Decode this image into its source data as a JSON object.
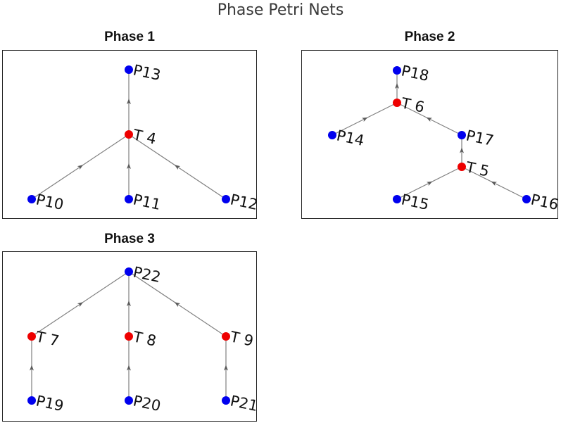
{
  "title": "Phase Petri Nets",
  "colors": {
    "place": "#0000ee",
    "transition": "#ee0000",
    "edge": "#7f7f7f",
    "arrow": "#5a5a5a"
  },
  "panels": [
    {
      "title": "Phase 1",
      "nodes": [
        {
          "id": "P13",
          "label": "P13",
          "kind": "place"
        },
        {
          "id": "T4",
          "label": "T 4",
          "kind": "transition"
        },
        {
          "id": "P10",
          "label": "P10",
          "kind": "place"
        },
        {
          "id": "P11",
          "label": "P11",
          "kind": "place"
        },
        {
          "id": "P12",
          "label": "P12",
          "kind": "place"
        }
      ],
      "edges": [
        {
          "from": "P10",
          "to": "T4"
        },
        {
          "from": "P11",
          "to": "T4"
        },
        {
          "from": "P12",
          "to": "T4"
        },
        {
          "from": "T4",
          "to": "P13"
        }
      ]
    },
    {
      "title": "Phase 2",
      "nodes": [
        {
          "id": "P18",
          "label": "P18",
          "kind": "place"
        },
        {
          "id": "T6",
          "label": "T 6",
          "kind": "transition"
        },
        {
          "id": "P14",
          "label": "P14",
          "kind": "place"
        },
        {
          "id": "P17",
          "label": "P17",
          "kind": "place"
        },
        {
          "id": "T5",
          "label": "T 5",
          "kind": "transition"
        },
        {
          "id": "P15",
          "label": "P15",
          "kind": "place"
        },
        {
          "id": "P16",
          "label": "P16",
          "kind": "place"
        }
      ],
      "edges": [
        {
          "from": "P15",
          "to": "T5"
        },
        {
          "from": "P16",
          "to": "T5"
        },
        {
          "from": "T5",
          "to": "P17"
        },
        {
          "from": "P17",
          "to": "T6"
        },
        {
          "from": "P14",
          "to": "T6"
        },
        {
          "from": "T6",
          "to": "P18"
        }
      ]
    },
    {
      "title": "Phase 3",
      "nodes": [
        {
          "id": "P22",
          "label": "P22",
          "kind": "place"
        },
        {
          "id": "T7",
          "label": "T 7",
          "kind": "transition"
        },
        {
          "id": "T8",
          "label": "T 8",
          "kind": "transition"
        },
        {
          "id": "T9",
          "label": "T 9",
          "kind": "transition"
        },
        {
          "id": "P19",
          "label": "P19",
          "kind": "place"
        },
        {
          "id": "P20",
          "label": "P20",
          "kind": "place"
        },
        {
          "id": "P21",
          "label": "P21",
          "kind": "place"
        }
      ],
      "edges": [
        {
          "from": "P19",
          "to": "T7"
        },
        {
          "from": "P20",
          "to": "T8"
        },
        {
          "from": "P21",
          "to": "T9"
        },
        {
          "from": "T7",
          "to": "P22"
        },
        {
          "from": "T8",
          "to": "P22"
        },
        {
          "from": "T9",
          "to": "P22"
        }
      ]
    }
  ]
}
